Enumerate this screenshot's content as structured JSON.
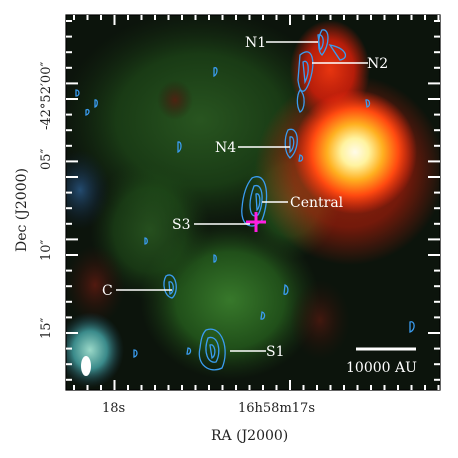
{
  "figure": {
    "xlabel": "RA (J2000)",
    "ylabel": "Dec (J2000)",
    "x_ticks": [
      "18s",
      "16h58m17s"
    ],
    "y_ticks": [
      "-42°52′00″",
      "05″",
      "10″",
      "15″"
    ]
  },
  "sources": [
    {
      "label": "N1"
    },
    {
      "label": "N2"
    },
    {
      "label": "N4"
    },
    {
      "label": "Central"
    },
    {
      "label": "S3"
    },
    {
      "label": "C"
    },
    {
      "label": "S1"
    }
  ],
  "scalebar": {
    "label": "10000 AU"
  },
  "colors": {
    "contour": "#3a9cf0",
    "marker": "#ff1ee0",
    "label_text": "#ffffff",
    "bright_source": "#fff6c8",
    "red_emission": "#ff3a12",
    "green_emission": "#3a7a2a"
  }
}
